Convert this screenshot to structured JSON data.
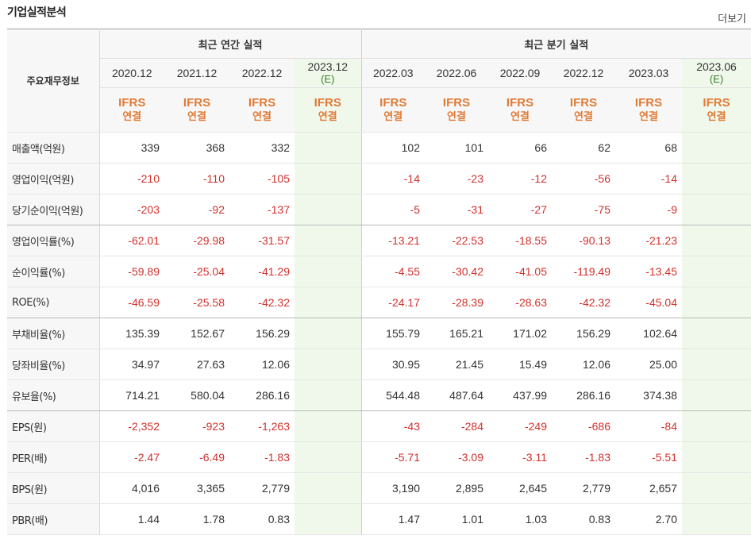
{
  "section_title": "기업실적분석",
  "more_link": "더보기",
  "header": {
    "row_label": "주요재무정보",
    "annual_group": "최근 연간 실적",
    "quarter_group": "최근 분기 실적",
    "periods": [
      {
        "label": "2020.12",
        "est": ""
      },
      {
        "label": "2021.12",
        "est": ""
      },
      {
        "label": "2022.12",
        "est": ""
      },
      {
        "label": "2023.12",
        "est": "(E)"
      },
      {
        "label": "2022.03",
        "est": ""
      },
      {
        "label": "2022.06",
        "est": ""
      },
      {
        "label": "2022.09",
        "est": ""
      },
      {
        "label": "2022.12",
        "est": ""
      },
      {
        "label": "2023.03",
        "est": ""
      },
      {
        "label": "2023.06",
        "est": "(E)"
      }
    ],
    "standard": "IFRS",
    "basis": "연결"
  },
  "rows": [
    {
      "label": "매출액(억원)",
      "values": [
        "339",
        "368",
        "332",
        "",
        "102",
        "101",
        "66",
        "62",
        "68",
        ""
      ]
    },
    {
      "label": "영업이익(억원)",
      "values": [
        "-210",
        "-110",
        "-105",
        "",
        "-14",
        "-23",
        "-12",
        "-56",
        "-14",
        ""
      ]
    },
    {
      "label": "당기순이익(억원)",
      "values": [
        "-203",
        "-92",
        "-137",
        "",
        "-5",
        "-31",
        "-27",
        "-75",
        "-9",
        ""
      ]
    },
    {
      "label": "영업이익률(%)",
      "values": [
        "-62.01",
        "-29.98",
        "-31.57",
        "",
        "-13.21",
        "-22.53",
        "-18.55",
        "-90.13",
        "-21.23",
        ""
      ]
    },
    {
      "label": "순이익률(%)",
      "values": [
        "-59.89",
        "-25.04",
        "-41.29",
        "",
        "-4.55",
        "-30.42",
        "-41.05",
        "-119.49",
        "-13.45",
        ""
      ]
    },
    {
      "label": "ROE(%)",
      "values": [
        "-46.59",
        "-25.58",
        "-42.32",
        "",
        "-24.17",
        "-28.39",
        "-28.63",
        "-42.32",
        "-45.04",
        ""
      ]
    },
    {
      "label": "부채비율(%)",
      "values": [
        "135.39",
        "152.67",
        "156.29",
        "",
        "155.79",
        "165.21",
        "171.02",
        "156.29",
        "102.64",
        ""
      ]
    },
    {
      "label": "당좌비율(%)",
      "values": [
        "34.97",
        "27.63",
        "12.06",
        "",
        "30.95",
        "21.45",
        "15.49",
        "12.06",
        "25.00",
        ""
      ]
    },
    {
      "label": "유보율(%)",
      "values": [
        "714.21",
        "580.04",
        "286.16",
        "",
        "544.48",
        "487.64",
        "437.99",
        "286.16",
        "374.38",
        ""
      ]
    },
    {
      "label": "EPS(원)",
      "values": [
        "-2,352",
        "-923",
        "-1,263",
        "",
        "-43",
        "-284",
        "-249",
        "-686",
        "-84",
        ""
      ]
    },
    {
      "label": "PER(배)",
      "values": [
        "-2.47",
        "-6.49",
        "-1.83",
        "",
        "-5.71",
        "-3.09",
        "-3.11",
        "-1.83",
        "-5.51",
        ""
      ]
    },
    {
      "label": "BPS(원)",
      "values": [
        "4,016",
        "3,365",
        "2,779",
        "",
        "3,190",
        "2,895",
        "2,645",
        "2,779",
        "2,657",
        ""
      ]
    },
    {
      "label": "PBR(배)",
      "values": [
        "1.44",
        "1.78",
        "0.83",
        "",
        "1.47",
        "1.01",
        "1.03",
        "0.83",
        "2.70",
        ""
      ]
    }
  ],
  "colors": {
    "negative": "#d0312d",
    "ifrs": "#e07b36",
    "estimate_bg": "#f0f8eb",
    "estimate_text": "#3b7d2a"
  }
}
